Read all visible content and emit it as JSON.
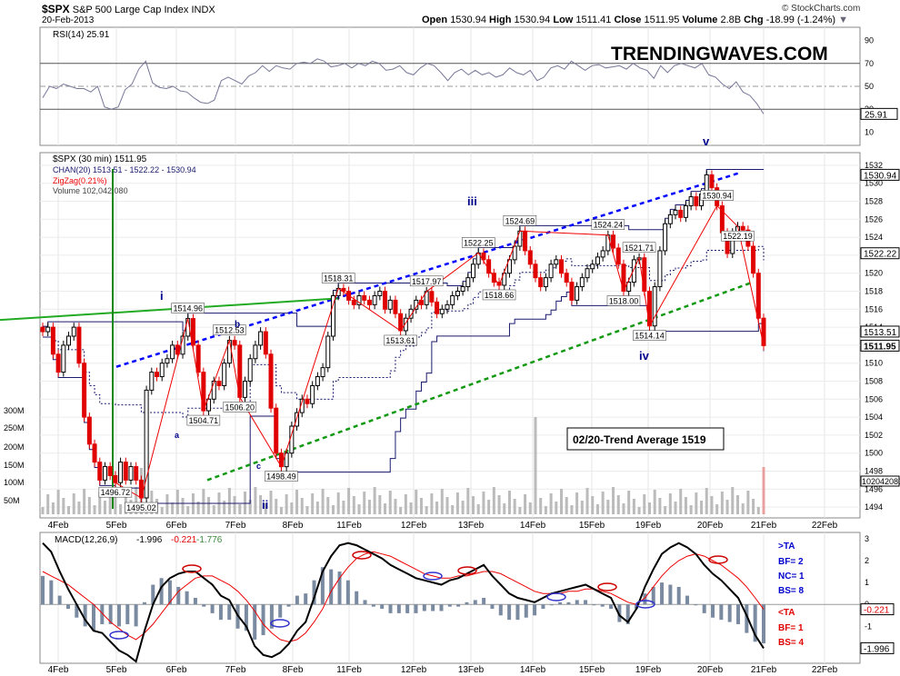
{
  "header": {
    "symbol": "$SPX",
    "name": "S&P 500 Large Cap Index",
    "exchange": "INDX",
    "date": "20-Feb-2013",
    "open_label": "Open",
    "open": "1530.94",
    "high_label": "High",
    "high": "1530.94",
    "low_label": "Low",
    "low": "1511.41",
    "close_label": "Close",
    "close": "1511.95",
    "volume_label": "Volume",
    "volume": "2.8B",
    "chg_label": "Chg",
    "chg": "-18.99 (-1.24%)",
    "arrow_icon": "triangle-down-icon",
    "copyright": "© StockCharts.com"
  },
  "watermark": "TRENDINGWAVES.COM",
  "colors": {
    "up": "#000000",
    "down": "#e00000",
    "rsi_line": "#777799",
    "channel": "#1a1a6e",
    "zigzag": "#ee0000",
    "blue_trend": "#0000ff",
    "green_trend": "#009900",
    "green_line": "#22aa22",
    "volume": "#bbbbbb",
    "macd": "#000000",
    "signal": "#ee0000",
    "histogram": "#7a8aa0",
    "label_blue": "#00008b"
  },
  "chart_data": [
    {
      "type": "line",
      "panel": "RSI",
      "legend": "RSI(14) 25.91",
      "ylim": [
        0,
        100
      ],
      "y_ticks": [
        10,
        30,
        50,
        70,
        90
      ],
      "reference_lines": [
        30,
        50,
        70
      ],
      "last_value": "25.91",
      "values": [
        40,
        50,
        48,
        52,
        50,
        48,
        48,
        45,
        50,
        32,
        30,
        32,
        47,
        52,
        65,
        72,
        53,
        49,
        48,
        50,
        46,
        45,
        40,
        36,
        35,
        38,
        55,
        58,
        55,
        52,
        59,
        62,
        68,
        63,
        68,
        66,
        65,
        70,
        71,
        70,
        74,
        72,
        67,
        68,
        70,
        66,
        70,
        68,
        72,
        70,
        64,
        65,
        68,
        62,
        60,
        66,
        70,
        68,
        62,
        55,
        62,
        65,
        60,
        64,
        60,
        62,
        58,
        60,
        66,
        62,
        60,
        64,
        55,
        58,
        66,
        68,
        65,
        72,
        68,
        64,
        68,
        69,
        66,
        67,
        68,
        65,
        70,
        66,
        64,
        57,
        68,
        62,
        68,
        70,
        68,
        66,
        70,
        60,
        58,
        52,
        48,
        54,
        45,
        42,
        35,
        25.91
      ]
    },
    {
      "type": "candlestick",
      "panel": "Price",
      "legend": [
        "$SPX (30 min) 1511.95",
        "CHAN(20) 1513.51 - 1522.22 - 1530.94",
        "ZigZag(0.21%)",
        "Volume 102,042,080"
      ],
      "ylim": [
        1493,
        1533
      ],
      "y_ticks": [
        1494,
        1496,
        1498,
        1500,
        1502,
        1504,
        1506,
        1508,
        1510,
        1512,
        1514,
        1516,
        1518,
        1520,
        1522,
        1524,
        1526,
        1528,
        1530,
        1532
      ],
      "x_ticks": [
        "4Feb",
        "5Feb",
        "6Feb",
        "7Feb",
        "8Feb",
        "11Feb",
        "12Feb",
        "13Feb",
        "14Feb",
        "15Feb",
        "19Feb",
        "20Feb",
        "21Feb",
        "22Feb"
      ],
      "closes": [
        1513.5,
        1514,
        1511,
        1509,
        1512,
        1513,
        1514,
        1510,
        1504,
        1501,
        1499,
        1497,
        1498.5,
        1497.5,
        1496.72,
        1499,
        1497,
        1498.5,
        1497,
        1495.02,
        1507,
        1509,
        1508.5,
        1510,
        1510.5,
        1512,
        1511,
        1513,
        1514.96,
        1512,
        1509,
        1504.71,
        1506,
        1508,
        1507.5,
        1510,
        1512.53,
        1512,
        1506.2,
        1508,
        1510.5,
        1512,
        1513.5,
        1511,
        1505,
        1500,
        1498.49,
        1500,
        1503,
        1504.5,
        1506,
        1505.5,
        1507.5,
        1508.5,
        1509.5,
        1513,
        1517.5,
        1518.31,
        1518,
        1517,
        1516.5,
        1517.5,
        1517,
        1516.5,
        1517.5,
        1518,
        1516,
        1517,
        1515.5,
        1513.61,
        1515,
        1516,
        1517,
        1516.5,
        1517.97,
        1516.8,
        1515.5,
        1516,
        1516.5,
        1517.5,
        1518,
        1518.5,
        1519.5,
        1521,
        1522.25,
        1521.5,
        1520,
        1519,
        1518.66,
        1520,
        1521.5,
        1523,
        1524.69,
        1522.5,
        1521,
        1519.5,
        1518.5,
        1519.5,
        1521,
        1521.5,
        1520,
        1519,
        1517,
        1518.5,
        1519.5,
        1520.5,
        1521,
        1521.8,
        1522.5,
        1524.24,
        1522.8,
        1521,
        1518,
        1519,
        1521.5,
        1521.71,
        1518,
        1514.14,
        1518.5,
        1522.5,
        1525.5,
        1526.5,
        1527,
        1526.2,
        1527.5,
        1528.5,
        1527.5,
        1528.8,
        1530.94,
        1529.5,
        1527.5,
        1524.5,
        1522.19,
        1524.5,
        1525.2,
        1524.8,
        1523,
        1520,
        1515,
        1511.95
      ],
      "pivot_labels": [
        "1496.72",
        "1495.02",
        "1514.96",
        "1504.71",
        "1512.53",
        "1506.20",
        "1498.49",
        "1518.31",
        "1513.61",
        "1517.97",
        "1522.25",
        "1518.66",
        "1524.69",
        "1524.24",
        "1518.00",
        "1521.71",
        "1514.14",
        "1530.94",
        "1522.19"
      ],
      "wave_labels": [
        "i",
        "a",
        "b",
        "c",
        "ii",
        "iii",
        "iv",
        "v"
      ],
      "annotation": "02/20-Trend Average 1519",
      "channel_upper": 1530.94,
      "channel_mid": 1522.22,
      "channel_lower": 1513.51,
      "volume_ticks": [
        "50M",
        "100M",
        "150M",
        "200M",
        "250M",
        "300M"
      ],
      "volume_last": "102042080",
      "last_close": "1511.95",
      "last_channel_lower": "1513.51",
      "last_channel_mid": "1522.22",
      "last_channel_upper": "1530.94"
    },
    {
      "type": "line",
      "panel": "MACD",
      "legend_label": "MACD(12,26,9)",
      "macd_value": "-1.996",
      "signal_value": "-0.221",
      "hist_value": "-1.776",
      "ylim": [
        -2.6,
        3.2
      ],
      "y_ticks": [
        3,
        2,
        1,
        0,
        -1,
        -2
      ],
      "macd": [
        2.8,
        2.4,
        1.5,
        0.7,
        0.0,
        -0.7,
        -1.2,
        -1.3,
        -1.7,
        -2.1,
        -2.3,
        -2.6,
        -1.2,
        0.0,
        0.8,
        1.2,
        1.4,
        1.5,
        1.5,
        1.2,
        0.9,
        0.4,
        0.2,
        -0.5,
        -1.0,
        -1.9,
        -2.3,
        -2.4,
        -2.2,
        -1.8,
        -1.2,
        -0.8,
        0.3,
        1.5,
        2.2,
        2.7,
        2.8,
        2.7,
        2.5,
        2.3,
        2.1,
        1.8,
        1.6,
        1.4,
        1.2,
        1.1,
        1.0,
        0.9,
        1.1,
        1.2,
        1.4,
        1.6,
        1.8,
        1.3,
        0.9,
        0.5,
        0.3,
        0.2,
        0.1,
        0.3,
        0.5,
        0.6,
        0.7,
        0.8,
        0.9,
        0.7,
        0.5,
        0.3,
        -0.5,
        -0.8,
        -0.2,
        0.8,
        1.6,
        2.3,
        2.6,
        2.8,
        2.6,
        2.3,
        1.8,
        1.4,
        1.1,
        0.7,
        0.3,
        -0.5,
        -1.4,
        -1.996
      ],
      "signal": [
        1.5,
        1.3,
        1.1,
        0.9,
        0.6,
        0.3,
        0.0,
        -0.4,
        -0.8,
        -1.1,
        -1.4,
        -1.6,
        -1.3,
        -0.9,
        -0.4,
        0.1,
        0.6,
        0.9,
        1.2,
        1.3,
        1.3,
        1.1,
        0.9,
        0.6,
        0.2,
        -0.3,
        -0.9,
        -1.3,
        -1.6,
        -1.7,
        -1.6,
        -1.3,
        -0.8,
        -0.2,
        0.6,
        1.2,
        1.7,
        2.1,
        2.3,
        2.4,
        2.3,
        2.2,
        2.0,
        1.8,
        1.6,
        1.4,
        1.3,
        1.2,
        1.2,
        1.3,
        1.3,
        1.4,
        1.5,
        1.5,
        1.4,
        1.2,
        1.0,
        0.8,
        0.6,
        0.5,
        0.5,
        0.5,
        0.6,
        0.6,
        0.7,
        0.7,
        0.6,
        0.5,
        0.3,
        0.1,
        0.0,
        0.3,
        0.8,
        1.3,
        1.7,
        2.0,
        2.2,
        2.3,
        2.2,
        2.0,
        1.8,
        1.5,
        1.2,
        0.8,
        0.3,
        -0.221
      ],
      "x_ticks": [
        "4Feb",
        "5Feb",
        "6Feb",
        "7Feb",
        "8Feb",
        "11Feb",
        "12Feb",
        "13Feb",
        "14Feb",
        "15Feb",
        "19Feb",
        "20Feb",
        "21Feb",
        "22Feb"
      ]
    }
  ],
  "side_notes": {
    "ta_up": ">TA",
    "bf_up": "BF= 2",
    "nc_up": "NC= 1",
    "bs_up": "BS= 8",
    "ta_down": "<TA",
    "bf_down": "BF= 1",
    "bs_down": "BS= 4"
  }
}
